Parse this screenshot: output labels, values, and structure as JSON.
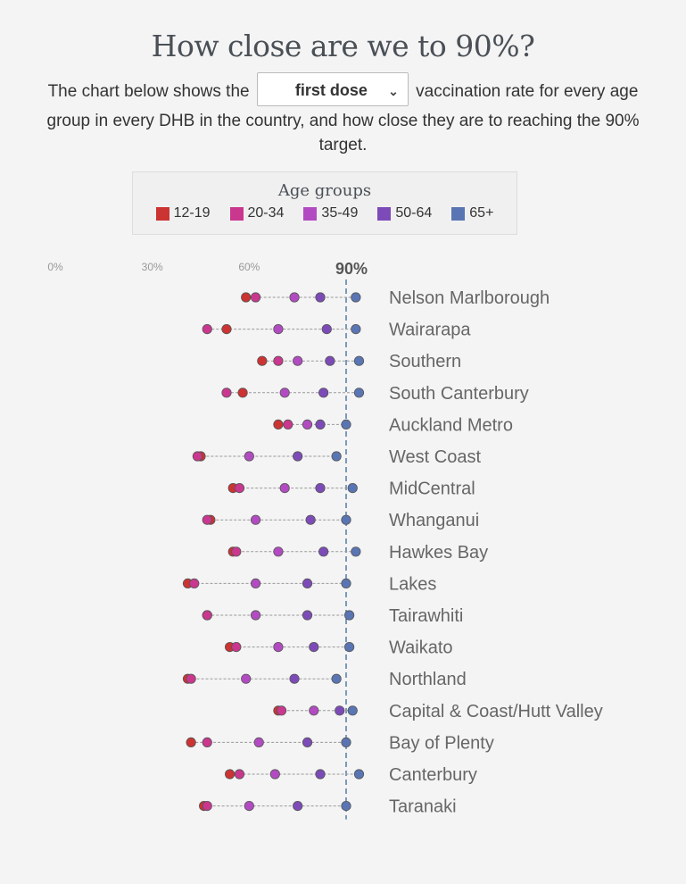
{
  "header": {
    "title": "How close are we to 90%?",
    "intro_before": "The chart below shows the",
    "dose_selected": "first dose",
    "intro_after": "vaccination rate for every age group in every DHB in the country, and how close they are to reaching the 90% target."
  },
  "legend": {
    "title": "Age groups",
    "items": [
      {
        "label": "12-19",
        "color": "#cc3333"
      },
      {
        "label": "20-34",
        "color": "#c9378e"
      },
      {
        "label": "35-49",
        "color": "#b24bc2"
      },
      {
        "label": "50-64",
        "color": "#7d4bb8"
      },
      {
        "label": "65+",
        "color": "#5a75b4"
      }
    ]
  },
  "chart_data": {
    "type": "scatter",
    "x_ticks": [
      "0%",
      "30%",
      "60%",
      "90%"
    ],
    "xlim": [
      0,
      100
    ],
    "target": 90,
    "target_label": "90%",
    "series_names": [
      "12-19",
      "20-34",
      "35-49",
      "50-64",
      "65+"
    ],
    "categories": [
      "Nelson Marlborough",
      "Wairarapa",
      "Southern",
      "South Canterbury",
      "Auckland Metro",
      "West Coast",
      "MidCentral",
      "Whanganui",
      "Hawkes Bay",
      "Lakes",
      "Tairawhiti",
      "Waikato",
      "Northland",
      "Capital & Coast/Hutt Valley",
      "Bay of Plenty",
      "Canterbury",
      "Taranaki"
    ],
    "values": [
      [
        59,
        62,
        74,
        82,
        93
      ],
      [
        53,
        47,
        69,
        84,
        93
      ],
      [
        64,
        69,
        75,
        85,
        94
      ],
      [
        58,
        53,
        71,
        83,
        94
      ],
      [
        69,
        72,
        78,
        82,
        90
      ],
      [
        45,
        44,
        60,
        75,
        87
      ],
      [
        55,
        57,
        71,
        82,
        92
      ],
      [
        48,
        47,
        62,
        79,
        90
      ],
      [
        55,
        56,
        69,
        83,
        93
      ],
      [
        41,
        43,
        62,
        78,
        90
      ],
      [
        47,
        47,
        62,
        78,
        91
      ],
      [
        54,
        56,
        69,
        80,
        91
      ],
      [
        41,
        42,
        59,
        74,
        87
      ],
      [
        69,
        70,
        80,
        88,
        92
      ],
      [
        42,
        47,
        63,
        78,
        90
      ],
      [
        54,
        57,
        68,
        82,
        94
      ],
      [
        46,
        47,
        60,
        75,
        90
      ]
    ]
  }
}
